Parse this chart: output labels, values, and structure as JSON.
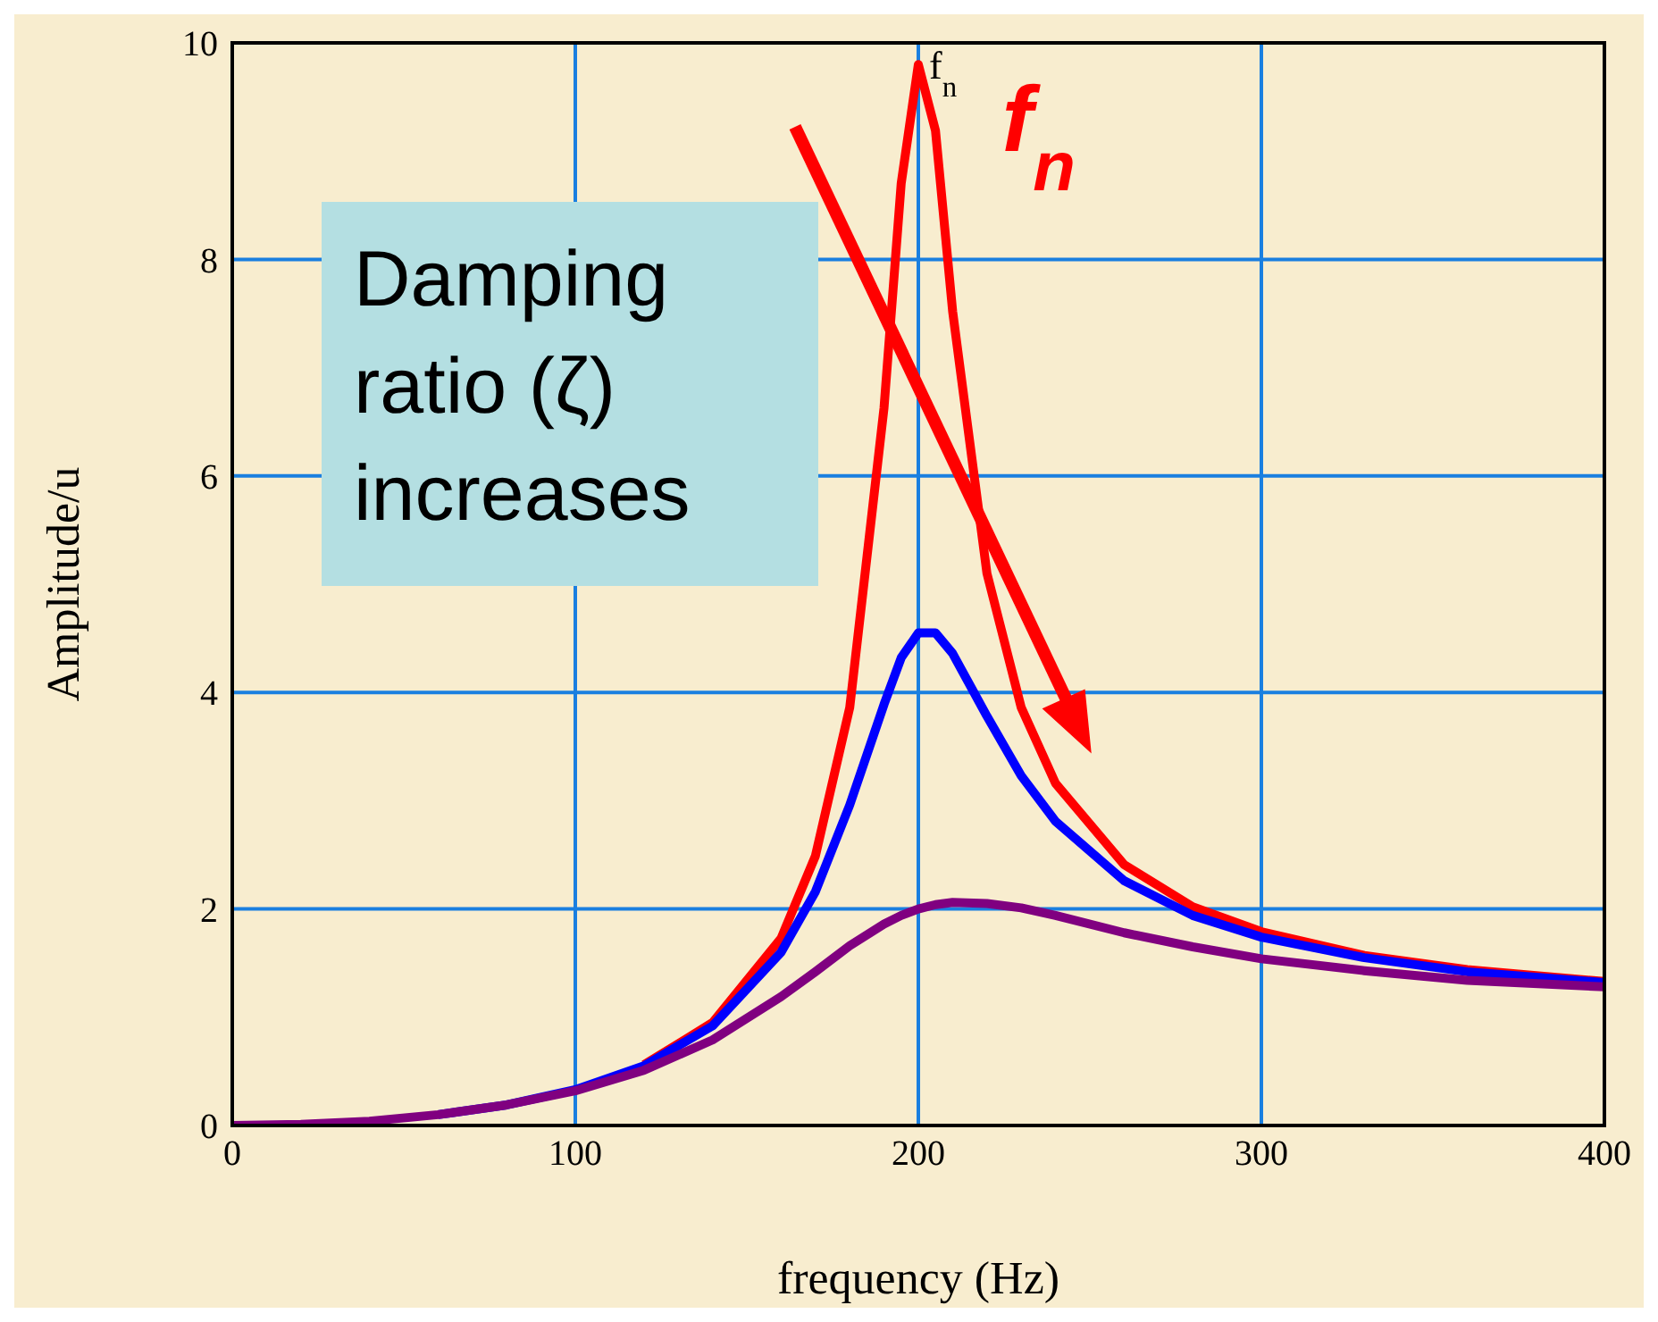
{
  "chart_data": {
    "type": "line",
    "xlabel": "frequency (Hz)",
    "ylabel": "Amplitude/u",
    "x": [
      0,
      20,
      40,
      60,
      80,
      100,
      120,
      140,
      160,
      170,
      180,
      190,
      195,
      200,
      205,
      210,
      220,
      230,
      240,
      260,
      280,
      300,
      330,
      360,
      400
    ],
    "series": [
      {
        "color": "#ff0000",
        "values": [
          null,
          null,
          null,
          null,
          null,
          null,
          0.56,
          0.95,
          1.73,
          2.49,
          3.86,
          6.63,
          8.7,
          9.8,
          9.19,
          7.52,
          5.1,
          3.86,
          3.16,
          2.41,
          2.02,
          1.79,
          1.57,
          1.44,
          1.33
        ]
      },
      {
        "color": "#0000ff",
        "values": [
          null,
          null,
          null,
          0.1,
          0.19,
          0.33,
          0.55,
          0.92,
          1.6,
          2.16,
          2.96,
          3.89,
          4.32,
          4.55,
          4.55,
          4.36,
          3.78,
          3.23,
          2.81,
          2.26,
          1.94,
          1.74,
          1.55,
          1.42,
          1.32
        ]
      },
      {
        "color": "#800080",
        "values": [
          0,
          0.01,
          0.04,
          0.1,
          0.19,
          0.32,
          0.51,
          0.79,
          1.19,
          1.42,
          1.66,
          1.86,
          1.94,
          2,
          2.04,
          2.06,
          2.05,
          2.01,
          1.94,
          1.78,
          1.65,
          1.54,
          1.43,
          1.34,
          1.28
        ]
      }
    ],
    "xlim": [
      0,
      400
    ],
    "xticks": [
      0,
      100,
      200,
      300,
      400
    ],
    "ylim": [
      0,
      10
    ],
    "yticks": [
      0,
      2,
      4,
      6,
      8,
      10
    ],
    "grid": true,
    "marker": "none",
    "line_style": "solid",
    "annotations": [
      "f$_{n}$",
      "f$_{n}$",
      "Damping ratio (ζ) increases"
    ]
  }
}
